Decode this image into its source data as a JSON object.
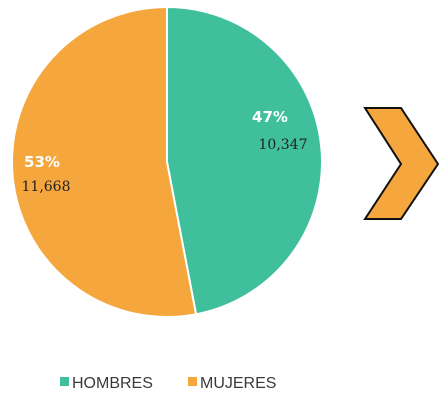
{
  "chart_data": {
    "type": "pie",
    "slices": [
      {
        "name": "HOMBRES",
        "percent_label": "47%",
        "value": 10347,
        "value_label": "10,347",
        "color": "#3fbf9c"
      },
      {
        "name": "MUJERES",
        "percent_label": "53%",
        "value": 11668,
        "value_label": "11,668",
        "color": "#f5a63c"
      }
    ],
    "legend": {
      "placement": "bottom",
      "items": [
        "HOMBRES",
        "MUJERES"
      ]
    }
  },
  "decoration": {
    "arrow_icon": "chevron-right-icon",
    "arrow_color": "#f5a63c"
  }
}
